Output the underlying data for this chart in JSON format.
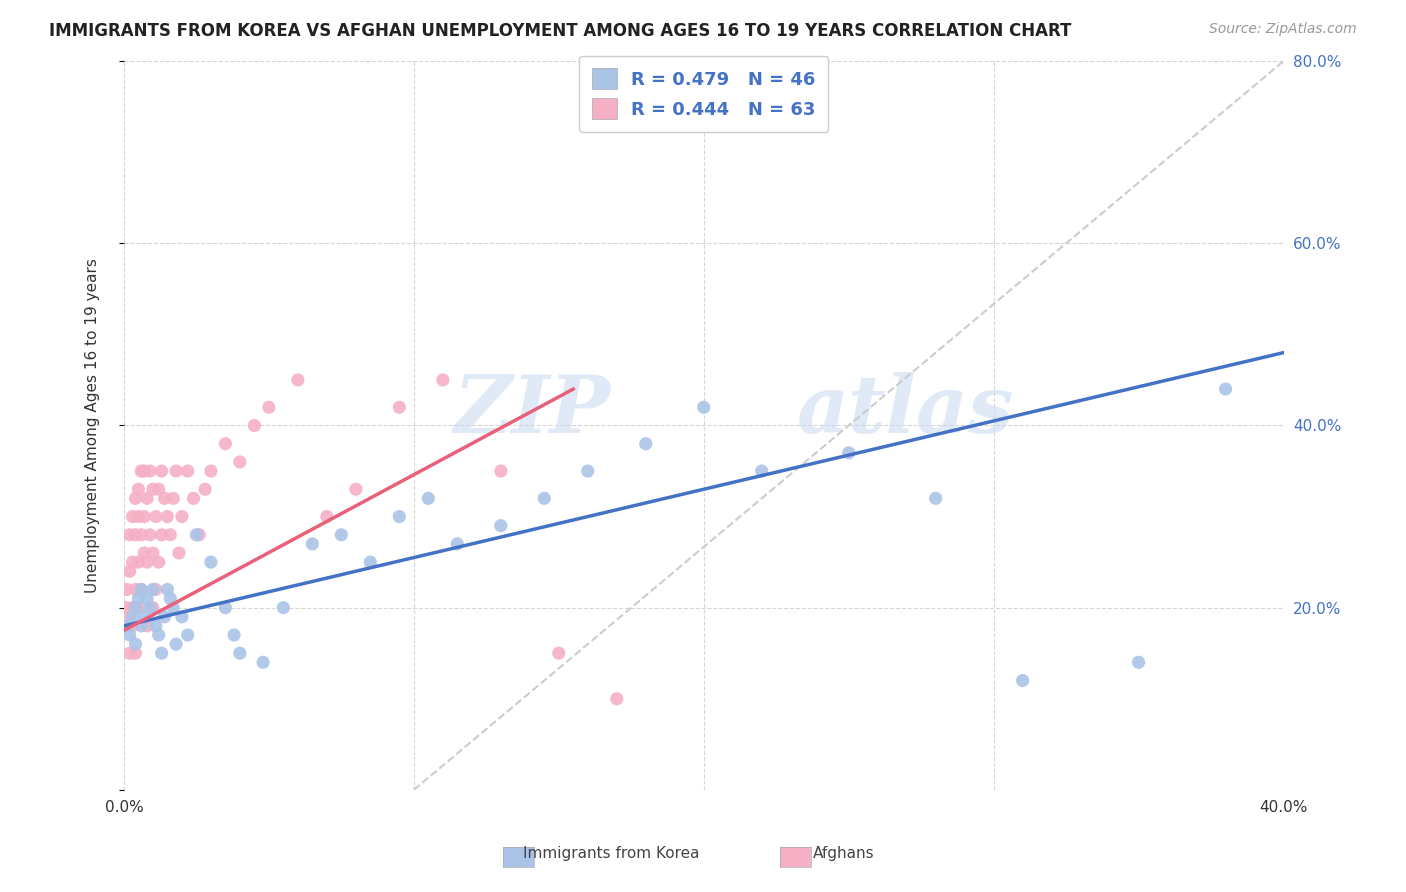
{
  "title": "IMMIGRANTS FROM KOREA VS AFGHAN UNEMPLOYMENT AMONG AGES 16 TO 19 YEARS CORRELATION CHART",
  "source": "Source: ZipAtlas.com",
  "ylabel": "Unemployment Among Ages 16 to 19 years",
  "xlim": [
    0.0,
    0.4
  ],
  "ylim": [
    0.0,
    0.8
  ],
  "background_color": "#ffffff",
  "grid_color": "#cccccc",
  "watermark": "ZIPatlas",
  "korea_color": "#aac4e8",
  "afghan_color": "#f5b0c5",
  "korea_line_color": "#4472c4",
  "afghan_line_color": "#e8607a",
  "diag_line_color": "#cccccc",
  "legend_text_color": "#4472c4",
  "korea_R": 0.479,
  "korea_N": 46,
  "afghan_R": 0.444,
  "afghan_N": 63,
  "korea_scatter_x": [
    0.001,
    0.002,
    0.003,
    0.004,
    0.004,
    0.005,
    0.006,
    0.006,
    0.007,
    0.008,
    0.009,
    0.01,
    0.011,
    0.012,
    0.013,
    0.014,
    0.015,
    0.016,
    0.017,
    0.018,
    0.02,
    0.022,
    0.025,
    0.03,
    0.035,
    0.038,
    0.04,
    0.048,
    0.055,
    0.065,
    0.075,
    0.085,
    0.095,
    0.105,
    0.115,
    0.13,
    0.145,
    0.16,
    0.18,
    0.2,
    0.22,
    0.25,
    0.28,
    0.31,
    0.35,
    0.38
  ],
  "korea_scatter_y": [
    0.18,
    0.17,
    0.19,
    0.2,
    0.16,
    0.21,
    0.18,
    0.22,
    0.19,
    0.21,
    0.2,
    0.22,
    0.18,
    0.17,
    0.15,
    0.19,
    0.22,
    0.21,
    0.2,
    0.16,
    0.19,
    0.17,
    0.28,
    0.25,
    0.2,
    0.17,
    0.15,
    0.14,
    0.2,
    0.27,
    0.28,
    0.25,
    0.3,
    0.32,
    0.27,
    0.29,
    0.32,
    0.35,
    0.38,
    0.42,
    0.35,
    0.37,
    0.32,
    0.12,
    0.14,
    0.44
  ],
  "afghan_scatter_x": [
    0.001,
    0.001,
    0.001,
    0.002,
    0.002,
    0.002,
    0.002,
    0.003,
    0.003,
    0.003,
    0.003,
    0.004,
    0.004,
    0.004,
    0.004,
    0.005,
    0.005,
    0.005,
    0.005,
    0.006,
    0.006,
    0.006,
    0.007,
    0.007,
    0.007,
    0.008,
    0.008,
    0.008,
    0.009,
    0.009,
    0.01,
    0.01,
    0.01,
    0.011,
    0.011,
    0.012,
    0.012,
    0.013,
    0.013,
    0.014,
    0.015,
    0.016,
    0.017,
    0.018,
    0.019,
    0.02,
    0.022,
    0.024,
    0.026,
    0.028,
    0.03,
    0.035,
    0.04,
    0.045,
    0.05,
    0.06,
    0.07,
    0.08,
    0.095,
    0.11,
    0.13,
    0.15,
    0.17
  ],
  "afghan_scatter_y": [
    0.18,
    0.2,
    0.22,
    0.15,
    0.19,
    0.24,
    0.28,
    0.2,
    0.25,
    0.3,
    0.18,
    0.22,
    0.28,
    0.32,
    0.15,
    0.2,
    0.25,
    0.3,
    0.33,
    0.22,
    0.28,
    0.35,
    0.26,
    0.3,
    0.35,
    0.25,
    0.32,
    0.18,
    0.28,
    0.35,
    0.2,
    0.26,
    0.33,
    0.22,
    0.3,
    0.25,
    0.33,
    0.28,
    0.35,
    0.32,
    0.3,
    0.28,
    0.32,
    0.35,
    0.26,
    0.3,
    0.35,
    0.32,
    0.28,
    0.33,
    0.35,
    0.38,
    0.36,
    0.4,
    0.42,
    0.45,
    0.3,
    0.33,
    0.42,
    0.45,
    0.35,
    0.15,
    0.1
  ],
  "korea_line_x": [
    0.0,
    0.4
  ],
  "korea_line_y": [
    0.18,
    0.48
  ],
  "afghan_line_x": [
    0.0,
    0.155
  ],
  "afghan_line_y": [
    0.175,
    0.44
  ],
  "diag_line_x": [
    0.1,
    0.4
  ],
  "diag_line_y": [
    0.0,
    0.8
  ],
  "legend_bottom": [
    "Immigrants from Korea",
    "Afghans"
  ]
}
